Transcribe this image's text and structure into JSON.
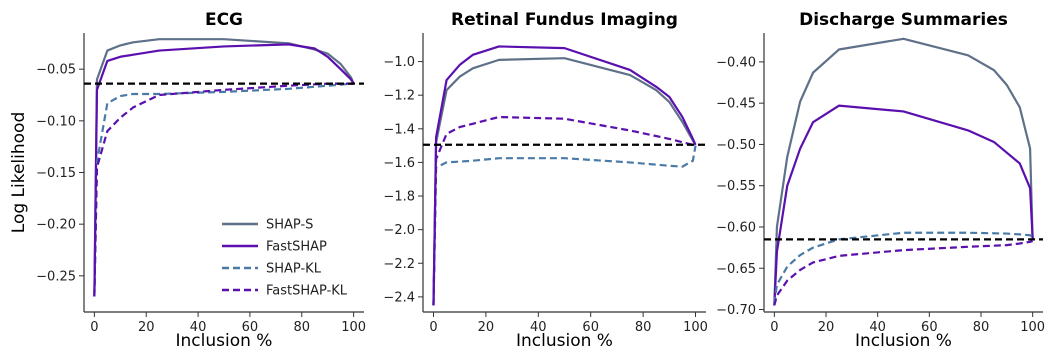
{
  "chart_data": [
    {
      "type": "line",
      "title": "ECG",
      "xlabel": "Inclusion %",
      "ylabel": "Log Likelihood",
      "xlim": [
        -4,
        104
      ],
      "ylim": [
        -0.285,
        -0.015
      ],
      "xticks": [
        0,
        20,
        40,
        60,
        80,
        100
      ],
      "yticks": [
        -0.25,
        -0.2,
        -0.15,
        -0.1,
        -0.05
      ],
      "ytick_labels": [
        "−0.25",
        "−0.20",
        "−0.15",
        "−0.10",
        "−0.05"
      ],
      "baseline": -0.064,
      "legend": "lower-right",
      "series": [
        {
          "name": "SHAP-S",
          "style": "solid",
          "color": "#5f7189",
          "x": [
            0,
            1,
            5,
            10,
            15,
            25,
            50,
            75,
            85,
            90,
            95,
            99,
            100
          ],
          "y": [
            -0.27,
            -0.06,
            -0.032,
            -0.027,
            -0.024,
            -0.021,
            -0.021,
            -0.025,
            -0.031,
            -0.035,
            -0.045,
            -0.058,
            -0.064
          ]
        },
        {
          "name": "FastSHAP",
          "style": "solid",
          "color": "#5a0fae",
          "x": [
            0,
            1,
            5,
            10,
            15,
            25,
            50,
            75,
            85,
            90,
            95,
            99,
            100
          ],
          "y": [
            -0.27,
            -0.07,
            -0.042,
            -0.038,
            -0.036,
            -0.032,
            -0.028,
            -0.026,
            -0.03,
            -0.038,
            -0.05,
            -0.06,
            -0.064
          ]
        },
        {
          "name": "SHAP-KL",
          "style": "dashed",
          "color": "#4a7ba7",
          "x": [
            0,
            1,
            5,
            10,
            15,
            25,
            50,
            75,
            90,
            95,
            99,
            100
          ],
          "y": [
            -0.27,
            -0.14,
            -0.083,
            -0.076,
            -0.074,
            -0.074,
            -0.072,
            -0.069,
            -0.066,
            -0.065,
            -0.064,
            -0.064
          ]
        },
        {
          "name": "FastSHAP-KL",
          "style": "dashed",
          "color": "#5a0fae",
          "x": [
            0,
            1,
            5,
            10,
            15,
            25,
            50,
            75,
            90,
            95,
            99,
            100
          ],
          "y": [
            -0.27,
            -0.145,
            -0.11,
            -0.097,
            -0.087,
            -0.075,
            -0.07,
            -0.066,
            -0.064,
            -0.064,
            -0.064,
            -0.064
          ]
        }
      ]
    },
    {
      "type": "line",
      "title": "Retinal Fundus Imaging",
      "xlabel": "Inclusion %",
      "ylabel": "",
      "xlim": [
        -4,
        104
      ],
      "ylim": [
        -2.49,
        -0.83
      ],
      "xticks": [
        0,
        20,
        40,
        60,
        80,
        100
      ],
      "yticks": [
        -2.4,
        -2.2,
        -2.0,
        -1.8,
        -1.6,
        -1.4,
        -1.2,
        -1.0
      ],
      "ytick_labels": [
        "−2.4",
        "−2.2",
        "−2.0",
        "−1.8",
        "−1.6",
        "−1.4",
        "−1.2",
        "−1.0"
      ],
      "baseline": -1.495,
      "series": [
        {
          "name": "SHAP-S",
          "style": "solid",
          "color": "#5f7189",
          "x": [
            0,
            1,
            5,
            10,
            15,
            25,
            50,
            75,
            85,
            90,
            95,
            99,
            100
          ],
          "y": [
            -2.45,
            -1.48,
            -1.17,
            -1.09,
            -1.04,
            -0.99,
            -0.98,
            -1.08,
            -1.17,
            -1.24,
            -1.36,
            -1.47,
            -1.495
          ]
        },
        {
          "name": "FastSHAP",
          "style": "solid",
          "color": "#5a0fae",
          "x": [
            0,
            1,
            5,
            10,
            15,
            25,
            50,
            75,
            85,
            90,
            95,
            99,
            100
          ],
          "y": [
            -2.45,
            -1.45,
            -1.11,
            -1.02,
            -0.96,
            -0.91,
            -0.92,
            -1.05,
            -1.15,
            -1.21,
            -1.33,
            -1.46,
            -1.495
          ]
        },
        {
          "name": "SHAP-KL",
          "style": "dashed",
          "color": "#4a7ba7",
          "x": [
            0,
            1,
            5,
            10,
            15,
            25,
            50,
            75,
            90,
            95,
            99,
            100
          ],
          "y": [
            -2.45,
            -1.63,
            -1.6,
            -1.595,
            -1.59,
            -1.575,
            -1.575,
            -1.6,
            -1.62,
            -1.625,
            -1.59,
            -1.5
          ]
        },
        {
          "name": "FastSHAP-KL",
          "style": "dashed",
          "color": "#5a0fae",
          "x": [
            0,
            1,
            5,
            10,
            15,
            25,
            50,
            75,
            90,
            95,
            99,
            100
          ],
          "y": [
            -2.45,
            -1.58,
            -1.43,
            -1.39,
            -1.37,
            -1.33,
            -1.34,
            -1.41,
            -1.46,
            -1.48,
            -1.495,
            -1.495
          ]
        }
      ]
    },
    {
      "type": "line",
      "title": "Discharge Summaries",
      "xlabel": "Inclusion %",
      "ylabel": "",
      "xlim": [
        -4,
        104
      ],
      "ylim": [
        -0.703,
        -0.365
      ],
      "xticks": [
        0,
        20,
        40,
        60,
        80,
        100
      ],
      "yticks": [
        -0.7,
        -0.65,
        -0.6,
        -0.55,
        -0.5,
        -0.45,
        -0.4
      ],
      "ytick_labels": [
        "−0.70",
        "−0.65",
        "−0.60",
        "−0.55",
        "−0.50",
        "−0.45",
        "−0.40"
      ],
      "baseline": -0.615,
      "series": [
        {
          "name": "SHAP-S",
          "style": "solid",
          "color": "#5f7189",
          "x": [
            0,
            1,
            5,
            10,
            15,
            25,
            50,
            75,
            85,
            90,
            95,
            99,
            100
          ],
          "y": [
            -0.695,
            -0.6,
            -0.515,
            -0.448,
            -0.413,
            -0.385,
            -0.372,
            -0.392,
            -0.41,
            -0.428,
            -0.455,
            -0.505,
            -0.615
          ]
        },
        {
          "name": "FastSHAP",
          "style": "solid",
          "color": "#5a0fae",
          "x": [
            0,
            1,
            5,
            10,
            15,
            25,
            50,
            75,
            85,
            90,
            95,
            99,
            100
          ],
          "y": [
            -0.695,
            -0.63,
            -0.55,
            -0.505,
            -0.473,
            -0.453,
            -0.46,
            -0.483,
            -0.497,
            -0.51,
            -0.523,
            -0.553,
            -0.615
          ]
        },
        {
          "name": "SHAP-KL",
          "style": "dashed",
          "color": "#4a7ba7",
          "x": [
            0,
            1,
            5,
            10,
            15,
            25,
            50,
            75,
            90,
            95,
            99,
            100
          ],
          "y": [
            -0.693,
            -0.67,
            -0.648,
            -0.634,
            -0.625,
            -0.615,
            -0.607,
            -0.607,
            -0.608,
            -0.609,
            -0.61,
            -0.612
          ]
        },
        {
          "name": "FastSHAP-KL",
          "style": "dashed",
          "color": "#5a0fae",
          "x": [
            0,
            1,
            5,
            10,
            15,
            25,
            50,
            75,
            90,
            95,
            99,
            100
          ],
          "y": [
            -0.695,
            -0.683,
            -0.665,
            -0.652,
            -0.643,
            -0.635,
            -0.628,
            -0.624,
            -0.622,
            -0.62,
            -0.618,
            -0.617
          ]
        }
      ]
    }
  ]
}
